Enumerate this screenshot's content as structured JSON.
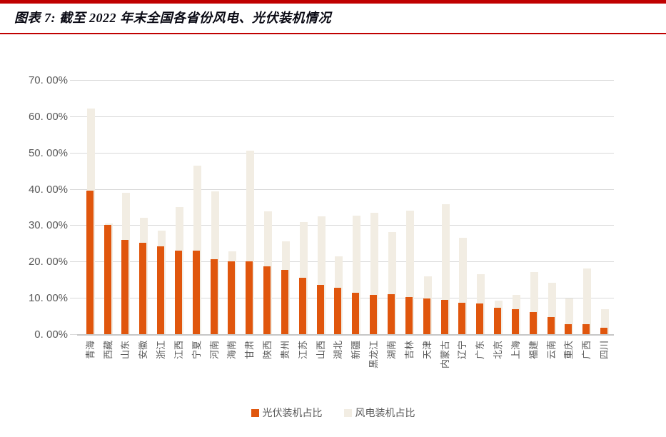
{
  "header": {
    "title": "图表 7: 截至 2022 年末全国各省份风电、光伏装机情况"
  },
  "colors": {
    "accent_red": "#C00000",
    "solar_orange": "#E0560D",
    "wind_beige": "#F2EDE3",
    "gridline": "#D9D9D9",
    "axis_line": "#C6C6C6",
    "axis_text": "#595959"
  },
  "chart_data": {
    "type": "bar",
    "overlap": true,
    "title": "截至 2022 年末全国各省份风电、光伏装机情况",
    "categories": [
      "青海",
      "西藏",
      "山东",
      "安徽",
      "浙江",
      "江西",
      "宁夏",
      "河南",
      "海南",
      "甘肃",
      "陕西",
      "贵州",
      "江苏",
      "山西",
      "湖北",
      "新疆",
      "黑龙江",
      "湖南",
      "吉林",
      "天津",
      "内蒙古",
      "辽宁",
      "广东",
      "北京",
      "上海",
      "福建",
      "云南",
      "重庆",
      "广西",
      "四川"
    ],
    "series": [
      {
        "name": "光伏装机占比",
        "color_key": "solar_orange",
        "values": [
          39.5,
          30.0,
          26.0,
          25.2,
          24.1,
          23.0,
          23.0,
          20.6,
          20.1,
          20.0,
          18.6,
          17.7,
          15.5,
          13.6,
          12.8,
          11.4,
          10.9,
          11.0,
          10.2,
          9.8,
          9.4,
          8.7,
          8.5,
          7.3,
          6.8,
          6.0,
          4.7,
          2.8,
          2.7,
          1.8
        ]
      },
      {
        "name": "风电装机占比",
        "color_key": "wind_beige",
        "values": [
          62.2,
          30.5,
          38.9,
          32.1,
          28.5,
          35.0,
          46.4,
          39.3,
          22.9,
          50.5,
          33.9,
          25.6,
          30.8,
          32.4,
          21.5,
          32.6,
          33.5,
          28.2,
          34.0,
          16.0,
          35.8,
          26.6,
          16.6,
          9.2,
          10.9,
          17.1,
          14.2,
          9.9,
          18.1,
          6.9
        ]
      }
    ],
    "ylim": [
      0,
      70
    ],
    "yticks": [
      {
        "value": 0,
        "label": "0. 00%"
      },
      {
        "value": 10,
        "label": "10. 00%"
      },
      {
        "value": 20,
        "label": "20. 00%"
      },
      {
        "value": 30,
        "label": "30. 00%"
      },
      {
        "value": 40,
        "label": "40. 00%"
      },
      {
        "value": 50,
        "label": "50. 00%"
      },
      {
        "value": 60,
        "label": "60. 00%"
      },
      {
        "value": 70,
        "label": "70. 00%"
      }
    ],
    "grid": true,
    "legend_position": "bottom"
  }
}
